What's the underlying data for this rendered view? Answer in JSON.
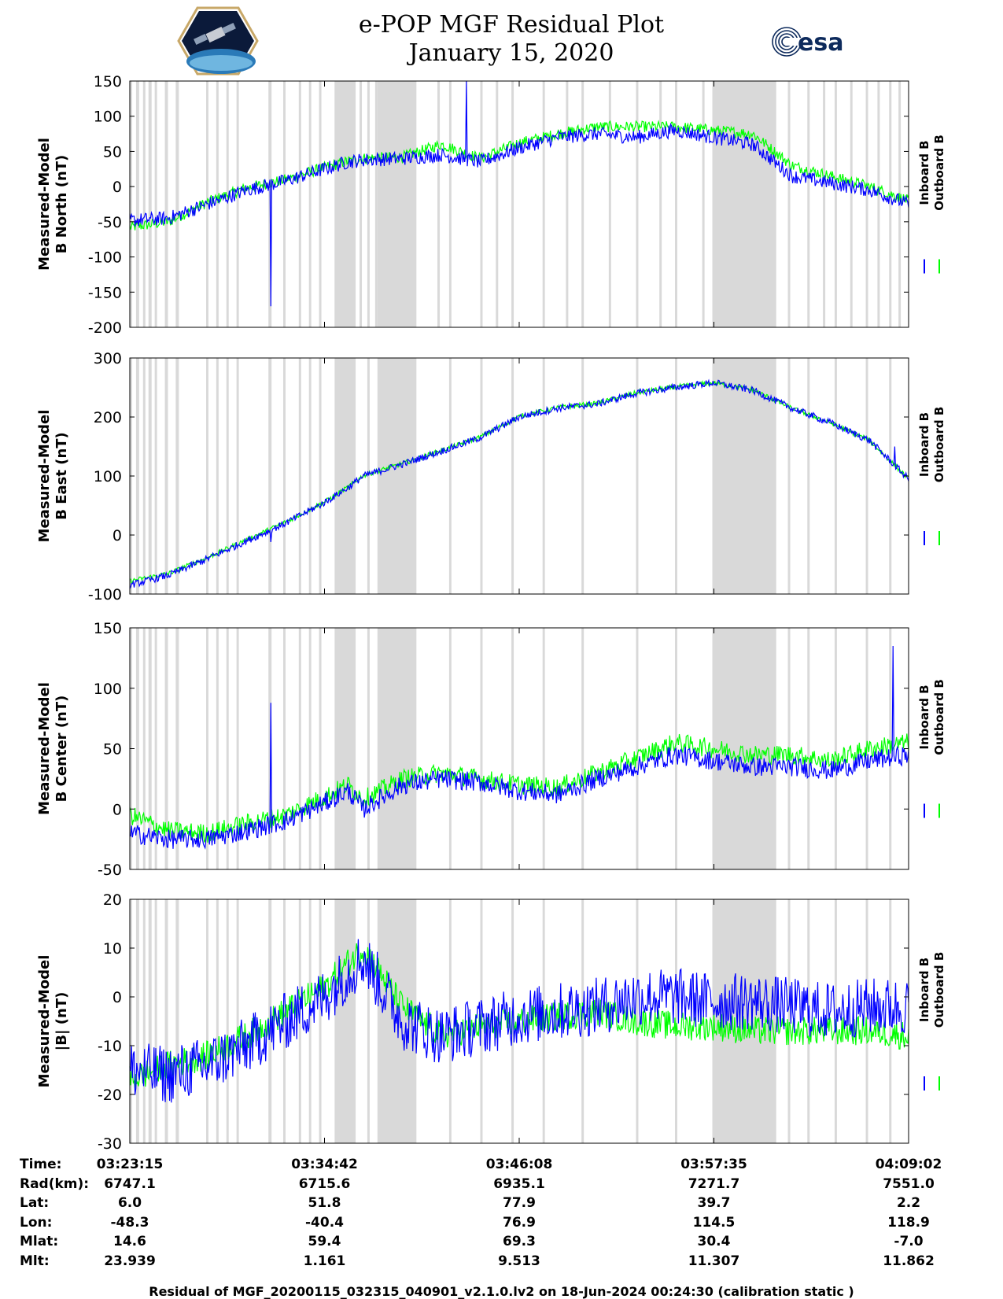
{
  "title": {
    "line1": "e-POP MGF Residual Plot",
    "line2": "January 15, 2020"
  },
  "logos": {
    "left": "cassiope-mission-logo",
    "right_text": "esa"
  },
  "colors": {
    "inboard": "#0000ff",
    "outboard": "#00ff00",
    "gap_shading": "#d9d9d9"
  },
  "legend": {
    "inboard": "Inboard B",
    "outboard": "Outboard B"
  },
  "time_axis": {
    "ticks": [
      "03:23:15",
      "03:34:42",
      "03:46:08",
      "03:57:35",
      "04:09:02"
    ]
  },
  "ephemeris": [
    {
      "label": "Time:",
      "values": [
        "03:23:15",
        "03:34:42",
        "03:46:08",
        "03:57:35",
        "04:09:02"
      ]
    },
    {
      "label": "Rad(km):",
      "values": [
        "6747.1",
        "6715.6",
        "6935.1",
        "7271.7",
        "7551.0"
      ]
    },
    {
      "label": "Lat:",
      "values": [
        "6.0",
        "51.8",
        "77.9",
        "39.7",
        "2.2"
      ]
    },
    {
      "label": "Lon:",
      "values": [
        "-48.3",
        "-40.4",
        "76.9",
        "114.5",
        "118.9"
      ]
    },
    {
      "label": "Mlat:",
      "values": [
        "14.6",
        "59.4",
        "69.3",
        "30.4",
        "-7.0"
      ]
    },
    {
      "label": "Mlt:",
      "values": [
        "23.939",
        "1.161",
        "9.513",
        "11.307",
        "11.862"
      ]
    }
  ],
  "footer": "Residual of MGF_20200115_032315_040901_v2.1.0.lv2 on 18-Jun-2024 00:24:30 (calibration static )",
  "chart_data": [
    {
      "type": "line",
      "title": "e-POP MGF Residual Plot",
      "ylabel_line1": "Measured-Model",
      "ylabel_line2": "B North (nT)",
      "xlabel": "Time",
      "ylim": [
        -200,
        150
      ],
      "yticks": [
        150,
        100,
        50,
        0,
        -50,
        -100,
        -150,
        -200
      ],
      "x": [
        0,
        0.05,
        0.1,
        0.15,
        0.2,
        0.25,
        0.28,
        0.3,
        0.35,
        0.4,
        0.45,
        0.5,
        0.55,
        0.6,
        0.65,
        0.7,
        0.75,
        0.8,
        0.85,
        0.9,
        0.95,
        1.0
      ],
      "series": [
        {
          "name": "Inboard B",
          "values": [
            -48,
            -45,
            -25,
            -5,
            8,
            25,
            35,
            38,
            40,
            45,
            35,
            55,
            70,
            75,
            70,
            80,
            70,
            60,
            15,
            5,
            -5,
            -25
          ],
          "noise": 10,
          "spikes": [
            [
              0.181,
              -170
            ],
            [
              0.432,
              150
            ]
          ]
        },
        {
          "name": "Outboard B",
          "values": [
            -58,
            -50,
            -22,
            -2,
            10,
            27,
            36,
            40,
            42,
            60,
            40,
            62,
            75,
            85,
            85,
            85,
            80,
            75,
            30,
            15,
            0,
            -20
          ],
          "noise": 8
        }
      ],
      "shaded_gaps": [
        [
          0.0,
          0.003
        ],
        [
          0.008,
          0.012
        ],
        [
          0.017,
          0.02
        ],
        [
          0.024,
          0.028
        ],
        [
          0.032,
          0.035
        ],
        [
          0.045,
          0.049
        ],
        [
          0.059,
          0.063
        ],
        [
          0.098,
          0.101
        ],
        [
          0.111,
          0.114
        ],
        [
          0.124,
          0.127
        ],
        [
          0.137,
          0.14
        ],
        [
          0.178,
          0.182
        ],
        [
          0.197,
          0.2
        ],
        [
          0.217,
          0.22
        ],
        [
          0.23,
          0.233
        ],
        [
          0.243,
          0.246
        ],
        [
          0.263,
          0.266
        ],
        [
          0.263,
          0.29
        ],
        [
          0.295,
          0.298
        ],
        [
          0.305,
          0.308
        ],
        [
          0.315,
          0.318
        ],
        [
          0.318,
          0.368
        ],
        [
          0.395,
          0.398
        ],
        [
          0.41,
          0.413
        ],
        [
          0.45,
          0.453
        ],
        [
          0.47,
          0.473
        ],
        [
          0.49,
          0.493
        ],
        [
          0.53,
          0.533
        ],
        [
          0.56,
          0.563
        ],
        [
          0.58,
          0.583
        ],
        [
          0.615,
          0.618
        ],
        [
          0.65,
          0.653
        ],
        [
          0.68,
          0.683
        ],
        [
          0.7,
          0.703
        ],
        [
          0.735,
          0.738
        ],
        [
          0.76,
          0.763
        ],
        [
          0.79,
          0.793
        ],
        [
          0.815,
          0.818
        ],
        [
          0.845,
          0.848
        ],
        [
          0.87,
          0.873
        ],
        [
          0.89,
          0.893
        ],
        [
          0.905,
          0.908
        ],
        [
          0.925,
          0.928
        ],
        [
          0.945,
          0.948
        ],
        [
          0.96,
          0.963
        ],
        [
          0.975,
          0.978
        ],
        [
          0.987,
          0.99
        ],
        [
          0.748,
          0.83
        ]
      ]
    },
    {
      "type": "line",
      "ylabel_line1": "Measured-Model",
      "ylabel_line2": "B East (nT)",
      "ylim": [
        -100,
        300
      ],
      "yticks": [
        300,
        200,
        100,
        0,
        -100
      ],
      "x": [
        0,
        0.05,
        0.1,
        0.15,
        0.2,
        0.25,
        0.28,
        0.3,
        0.35,
        0.4,
        0.45,
        0.5,
        0.55,
        0.6,
        0.65,
        0.7,
        0.75,
        0.8,
        0.85,
        0.9,
        0.95,
        1.0
      ],
      "series": [
        {
          "name": "Inboard B",
          "values": [
            -85,
            -68,
            -40,
            -10,
            20,
            55,
            80,
            100,
            120,
            142,
            165,
            200,
            215,
            222,
            240,
            250,
            258,
            245,
            215,
            190,
            160,
            95
          ],
          "noise": 6,
          "spikes": [
            [
              0.181,
              -12
            ],
            [
              0.982,
              150
            ]
          ]
        },
        {
          "name": "Outboard B",
          "values": [
            -78,
            -65,
            -38,
            -8,
            22,
            56,
            81,
            101,
            121,
            143,
            166,
            201,
            216,
            223,
            241,
            251,
            258,
            246,
            215,
            190,
            160,
            95
          ],
          "noise": 4
        }
      ],
      "shaded_gaps": [
        [
          0.0,
          0.003
        ],
        [
          0.008,
          0.012
        ],
        [
          0.017,
          0.02
        ],
        [
          0.024,
          0.028
        ],
        [
          0.032,
          0.035
        ],
        [
          0.045,
          0.049
        ],
        [
          0.059,
          0.063
        ],
        [
          0.098,
          0.101
        ],
        [
          0.111,
          0.114
        ],
        [
          0.124,
          0.127
        ],
        [
          0.137,
          0.14
        ],
        [
          0.178,
          0.182
        ],
        [
          0.197,
          0.2
        ],
        [
          0.217,
          0.22
        ],
        [
          0.23,
          0.233
        ],
        [
          0.243,
          0.246
        ],
        [
          0.263,
          0.29
        ],
        [
          0.305,
          0.308
        ],
        [
          0.318,
          0.368
        ],
        [
          0.41,
          0.413
        ],
        [
          0.45,
          0.453
        ],
        [
          0.49,
          0.493
        ],
        [
          0.53,
          0.533
        ],
        [
          0.58,
          0.583
        ],
        [
          0.65,
          0.653
        ],
        [
          0.7,
          0.703
        ],
        [
          0.76,
          0.763
        ],
        [
          0.815,
          0.818
        ],
        [
          0.845,
          0.848
        ],
        [
          0.87,
          0.873
        ],
        [
          0.905,
          0.908
        ],
        [
          0.945,
          0.948
        ],
        [
          0.975,
          0.978
        ],
        [
          0.748,
          0.83
        ]
      ]
    },
    {
      "type": "line",
      "ylabel_line1": "Measured-Model",
      "ylabel_line2": "B Center (nT)",
      "ylim": [
        -50,
        150
      ],
      "yticks": [
        150,
        100,
        50,
        0,
        -50
      ],
      "x": [
        0,
        0.05,
        0.1,
        0.15,
        0.2,
        0.25,
        0.28,
        0.3,
        0.35,
        0.4,
        0.45,
        0.5,
        0.55,
        0.6,
        0.65,
        0.7,
        0.75,
        0.8,
        0.85,
        0.9,
        0.95,
        1.0
      ],
      "series": [
        {
          "name": "Inboard B",
          "values": [
            -20,
            -25,
            -25,
            -18,
            -10,
            5,
            15,
            0,
            20,
            25,
            22,
            15,
            12,
            25,
            35,
            45,
            40,
            35,
            35,
            32,
            40,
            45
          ],
          "noise": 8,
          "spikes": [
            [
              0.181,
              88
            ],
            [
              0.98,
              135
            ]
          ]
        },
        {
          "name": "Outboard B",
          "values": [
            -5,
            -18,
            -20,
            -12,
            -5,
            10,
            20,
            8,
            25,
            30,
            25,
            20,
            18,
            30,
            42,
            55,
            50,
            45,
            45,
            40,
            50,
            55
          ],
          "noise": 8
        }
      ],
      "shaded_gaps": [
        [
          0.0,
          0.003
        ],
        [
          0.008,
          0.012
        ],
        [
          0.017,
          0.02
        ],
        [
          0.024,
          0.028
        ],
        [
          0.032,
          0.035
        ],
        [
          0.045,
          0.049
        ],
        [
          0.059,
          0.063
        ],
        [
          0.098,
          0.101
        ],
        [
          0.111,
          0.114
        ],
        [
          0.124,
          0.127
        ],
        [
          0.137,
          0.14
        ],
        [
          0.178,
          0.182
        ],
        [
          0.197,
          0.2
        ],
        [
          0.217,
          0.22
        ],
        [
          0.23,
          0.233
        ],
        [
          0.243,
          0.246
        ],
        [
          0.263,
          0.29
        ],
        [
          0.305,
          0.308
        ],
        [
          0.318,
          0.368
        ],
        [
          0.41,
          0.413
        ],
        [
          0.45,
          0.453
        ],
        [
          0.49,
          0.493
        ],
        [
          0.53,
          0.533
        ],
        [
          0.58,
          0.583
        ],
        [
          0.65,
          0.653
        ],
        [
          0.7,
          0.703
        ],
        [
          0.76,
          0.763
        ],
        [
          0.815,
          0.818
        ],
        [
          0.845,
          0.848
        ],
        [
          0.87,
          0.873
        ],
        [
          0.905,
          0.908
        ],
        [
          0.945,
          0.948
        ],
        [
          0.975,
          0.978
        ],
        [
          0.748,
          0.83
        ]
      ]
    },
    {
      "type": "line",
      "ylabel_line1": "Measured-Model",
      "ylabel_line2": "|B| (nT)",
      "ylim": [
        -30,
        20
      ],
      "yticks": [
        20,
        10,
        0,
        -10,
        -20,
        -30
      ],
      "x": [
        0,
        0.05,
        0.1,
        0.15,
        0.2,
        0.25,
        0.28,
        0.3,
        0.35,
        0.4,
        0.45,
        0.5,
        0.55,
        0.6,
        0.65,
        0.7,
        0.75,
        0.8,
        0.85,
        0.9,
        0.95,
        1.0
      ],
      "series": [
        {
          "name": "Inboard B",
          "values": [
            -15,
            -16,
            -14,
            -10,
            -5,
            0,
            5,
            8,
            -5,
            -8,
            -6,
            -4,
            -3,
            -2,
            0,
            0,
            -1,
            -1,
            -2,
            -3,
            -2,
            -2
          ],
          "noise": 6
        },
        {
          "name": "Outboard B",
          "values": [
            -17,
            -14,
            -12,
            -8,
            -3,
            2,
            7,
            10,
            -2,
            -8,
            -6,
            -5,
            -4,
            -3,
            -5,
            -6,
            -6,
            -7,
            -7,
            -7,
            -7,
            -8
          ],
          "noise": 3
        }
      ],
      "shaded_gaps": [
        [
          0.0,
          0.003
        ],
        [
          0.008,
          0.012
        ],
        [
          0.017,
          0.02
        ],
        [
          0.024,
          0.028
        ],
        [
          0.032,
          0.035
        ],
        [
          0.045,
          0.049
        ],
        [
          0.059,
          0.063
        ],
        [
          0.098,
          0.101
        ],
        [
          0.111,
          0.114
        ],
        [
          0.124,
          0.127
        ],
        [
          0.137,
          0.14
        ],
        [
          0.178,
          0.182
        ],
        [
          0.197,
          0.2
        ],
        [
          0.217,
          0.22
        ],
        [
          0.23,
          0.233
        ],
        [
          0.243,
          0.246
        ],
        [
          0.263,
          0.29
        ],
        [
          0.305,
          0.308
        ],
        [
          0.318,
          0.368
        ],
        [
          0.41,
          0.413
        ],
        [
          0.45,
          0.453
        ],
        [
          0.49,
          0.493
        ],
        [
          0.53,
          0.533
        ],
        [
          0.58,
          0.583
        ],
        [
          0.65,
          0.653
        ],
        [
          0.7,
          0.703
        ],
        [
          0.76,
          0.763
        ],
        [
          0.815,
          0.818
        ],
        [
          0.845,
          0.848
        ],
        [
          0.87,
          0.873
        ],
        [
          0.905,
          0.908
        ],
        [
          0.945,
          0.948
        ],
        [
          0.975,
          0.978
        ],
        [
          0.748,
          0.83
        ]
      ]
    }
  ]
}
